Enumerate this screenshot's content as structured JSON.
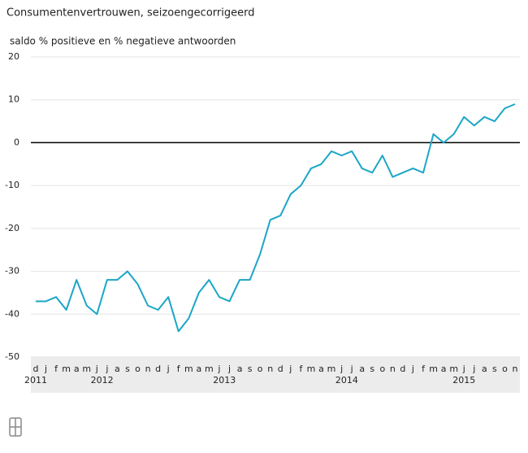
{
  "chart_data": {
    "type": "line",
    "title": "Consumentenvertrouwen, seizoengecorrigeerd",
    "subtitle": "saldo % positieve en % negatieve antwoorden",
    "x": [
      "2011-12",
      "2012-01",
      "2012-02",
      "2012-03",
      "2012-04",
      "2012-05",
      "2012-06",
      "2012-07",
      "2012-08",
      "2012-09",
      "2012-10",
      "2012-11",
      "2012-12",
      "2013-01",
      "2013-02",
      "2013-03",
      "2013-04",
      "2013-05",
      "2013-06",
      "2013-07",
      "2013-08",
      "2013-09",
      "2013-10",
      "2013-11",
      "2013-12",
      "2014-01",
      "2014-02",
      "2014-03",
      "2014-04",
      "2014-05",
      "2014-06",
      "2014-07",
      "2014-08",
      "2014-09",
      "2014-10",
      "2014-11",
      "2014-12",
      "2015-01",
      "2015-02",
      "2015-03",
      "2015-04",
      "2015-05",
      "2015-06",
      "2015-07",
      "2015-08",
      "2015-09",
      "2015-10",
      "2015-11"
    ],
    "x_tick_labels": [
      "d",
      "j",
      "f",
      "m",
      "a",
      "m",
      "j",
      "j",
      "a",
      "s",
      "o",
      "n",
      "d",
      "j",
      "f",
      "m",
      "a",
      "m",
      "j",
      "j",
      "a",
      "s",
      "o",
      "n",
      "d",
      "j",
      "f",
      "m",
      "a",
      "m",
      "j",
      "j",
      "a",
      "s",
      "o",
      "n",
      "d",
      "j",
      "f",
      "m",
      "a",
      "m",
      "j",
      "j",
      "a",
      "s",
      "o",
      "n"
    ],
    "years": [
      "2011",
      "2012",
      "2013",
      "2014",
      "2015"
    ],
    "series": [
      {
        "color": "#1ba6c6",
        "values": [
          -37,
          -37,
          -36,
          -39,
          -32,
          -38,
          -40,
          -32,
          -32,
          -30,
          -33,
          -38,
          -39,
          -36,
          -44,
          -41,
          -35,
          -32,
          -36,
          -37,
          -32,
          -32,
          -26,
          -18,
          -17,
          -12,
          -10,
          -6,
          -5,
          -2,
          -3,
          -2,
          -6,
          -7,
          -3,
          -8,
          -7,
          -6,
          -7,
          2,
          0,
          2,
          6,
          4,
          6,
          5,
          8,
          9
        ]
      }
    ],
    "ylim": [
      -50,
      20
    ],
    "yticks": [
      -50,
      -40,
      -30,
      -20,
      -10,
      0,
      10,
      20
    ],
    "grid": true
  }
}
